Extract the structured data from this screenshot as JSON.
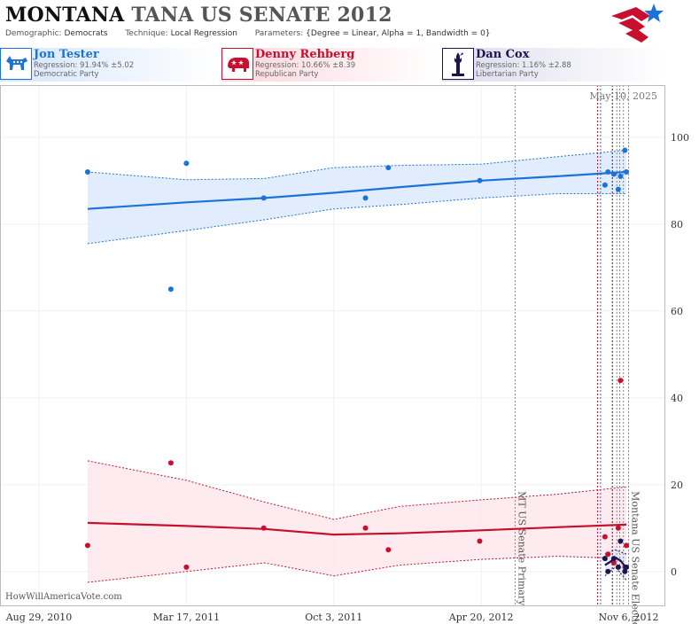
{
  "header": {
    "title_state": "MONTANA",
    "title_rest": "TANA US SENATE 2012",
    "demographic_key": "Demographic:",
    "demographic_val": "Democrats",
    "technique_key": "Technique:",
    "technique_val": "Local Regression",
    "parameters_key": "Parameters:",
    "parameters_val": "{Degree = Linear, Alpha = 1, Bandwidth = 0}"
  },
  "candidates": [
    {
      "name": "Jon Tester",
      "regression": "Regression: 91.94% ±5.02",
      "party": "Democratic Party",
      "color": "#1a73d9",
      "icon": "donkey-icon"
    },
    {
      "name": "Denny Rehberg",
      "regression": "Regression: 10.66% ±8.39",
      "party": "Republican Party",
      "color": "#c8102e",
      "icon": "elephant-icon"
    },
    {
      "name": "Dan Cox",
      "regression": "Regression: 1.16% ±2.88",
      "party": "Libertarian Party",
      "color": "#1c1650",
      "icon": "liberty-icon"
    }
  ],
  "watermark": "HowWillAmericaVote.com",
  "chart_data": {
    "type": "scatter",
    "date_label": "May 10, 2025",
    "x_range": [
      "2010-08-29",
      "2012-11-15"
    ],
    "x_ticks": [
      {
        "date": "2010-08-29",
        "label": "Aug 29, 2010"
      },
      {
        "date": "2011-03-17",
        "label": "Mar 17, 2011"
      },
      {
        "date": "2011-10-03",
        "label": "Oct 3, 2011"
      },
      {
        "date": "2012-04-20",
        "label": "Apr 20, 2012"
      },
      {
        "date": "2012-11-06",
        "label": "Nov 6, 2012"
      }
    ],
    "y_range": [
      -8,
      112
    ],
    "y_ticks": [
      0,
      20,
      40,
      60,
      80,
      100
    ],
    "vlines": [
      {
        "date": "2012-06-05",
        "label": "MT US Senate Primary",
        "color": "#888888"
      },
      {
        "date": "2012-11-06",
        "label": "Montana US Senate Election",
        "color": "#888888"
      },
      {
        "date": "2012-09-25",
        "label": "",
        "color": "#c8102e"
      },
      {
        "date": "2012-09-29",
        "label": "",
        "color": "#1a73d9"
      },
      {
        "date": "2012-10-15",
        "label": "",
        "color": "#1c1650"
      },
      {
        "date": "2012-10-21",
        "label": "",
        "color": "#888888"
      },
      {
        "date": "2012-10-25",
        "label": "",
        "color": "#888888"
      },
      {
        "date": "2012-10-30",
        "label": "",
        "color": "#888888"
      }
    ],
    "series": [
      {
        "name": "Jon Tester",
        "color": "#1a73d9",
        "band_color": "#dceafb",
        "points": [
          {
            "x": "2010-11-03",
            "y": 92
          },
          {
            "x": "2011-02-24",
            "y": 65
          },
          {
            "x": "2011-03-17",
            "y": 94
          },
          {
            "x": "2011-06-30",
            "y": 86
          },
          {
            "x": "2011-11-15",
            "y": 86
          },
          {
            "x": "2011-12-16",
            "y": 93
          },
          {
            "x": "2012-04-18",
            "y": 90
          },
          {
            "x": "2012-10-05",
            "y": 89
          },
          {
            "x": "2012-10-09",
            "y": 92
          },
          {
            "x": "2012-10-17",
            "y": 91.5
          },
          {
            "x": "2012-10-23",
            "y": 88
          },
          {
            "x": "2012-10-26",
            "y": 91
          },
          {
            "x": "2012-11-01",
            "y": 97
          },
          {
            "x": "2012-11-03",
            "y": 92
          }
        ],
        "fit": [
          {
            "x": "2010-11-03",
            "y": 83.5
          },
          {
            "x": "2011-03-17",
            "y": 85
          },
          {
            "x": "2011-07-01",
            "y": 86
          },
          {
            "x": "2011-10-03",
            "y": 87.2
          },
          {
            "x": "2012-01-01",
            "y": 88.5
          },
          {
            "x": "2012-04-20",
            "y": 90
          },
          {
            "x": "2012-08-01",
            "y": 91
          },
          {
            "x": "2012-11-03",
            "y": 92
          }
        ],
        "upper": [
          {
            "x": "2010-11-03",
            "y": 92
          },
          {
            "x": "2011-03-17",
            "y": 90.2
          },
          {
            "x": "2011-07-01",
            "y": 90.5
          },
          {
            "x": "2011-10-03",
            "y": 93
          },
          {
            "x": "2012-01-01",
            "y": 93.5
          },
          {
            "x": "2012-04-20",
            "y": 93.8
          },
          {
            "x": "2012-08-01",
            "y": 95.5
          },
          {
            "x": "2012-11-03",
            "y": 97
          }
        ],
        "lower": [
          {
            "x": "2010-11-03",
            "y": 75.5
          },
          {
            "x": "2011-03-17",
            "y": 78.5
          },
          {
            "x": "2011-07-01",
            "y": 81
          },
          {
            "x": "2011-10-03",
            "y": 83.5
          },
          {
            "x": "2012-01-01",
            "y": 84.5
          },
          {
            "x": "2012-04-20",
            "y": 86
          },
          {
            "x": "2012-08-01",
            "y": 87
          },
          {
            "x": "2012-11-03",
            "y": 87
          }
        ]
      },
      {
        "name": "Denny Rehberg",
        "color": "#c8102e",
        "band_color": "#fde8ec",
        "points": [
          {
            "x": "2010-11-03",
            "y": 6
          },
          {
            "x": "2011-02-24",
            "y": 25
          },
          {
            "x": "2011-03-17",
            "y": 1
          },
          {
            "x": "2011-06-30",
            "y": 10
          },
          {
            "x": "2011-11-15",
            "y": 10
          },
          {
            "x": "2011-12-16",
            "y": 5
          },
          {
            "x": "2012-04-18",
            "y": 7
          },
          {
            "x": "2012-10-05",
            "y": 8
          },
          {
            "x": "2012-10-09",
            "y": 4
          },
          {
            "x": "2012-10-17",
            "y": 2
          },
          {
            "x": "2012-10-23",
            "y": 10
          },
          {
            "x": "2012-10-26",
            "y": 44
          },
          {
            "x": "2012-11-01",
            "y": 1
          },
          {
            "x": "2012-11-03",
            "y": 6
          }
        ],
        "fit": [
          {
            "x": "2010-11-03",
            "y": 11.2
          },
          {
            "x": "2011-03-17",
            "y": 10.5
          },
          {
            "x": "2011-07-01",
            "y": 9.8
          },
          {
            "x": "2011-10-03",
            "y": 8.5
          },
          {
            "x": "2012-01-01",
            "y": 8.8
          },
          {
            "x": "2012-04-20",
            "y": 9.5
          },
          {
            "x": "2012-08-01",
            "y": 10.2
          },
          {
            "x": "2012-11-03",
            "y": 10.8
          }
        ],
        "upper": [
          {
            "x": "2010-11-03",
            "y": 25.5
          },
          {
            "x": "2011-03-17",
            "y": 21
          },
          {
            "x": "2011-07-01",
            "y": 16
          },
          {
            "x": "2011-10-03",
            "y": 12
          },
          {
            "x": "2012-01-01",
            "y": 15
          },
          {
            "x": "2012-04-20",
            "y": 16.5
          },
          {
            "x": "2012-08-01",
            "y": 17.8
          },
          {
            "x": "2012-11-03",
            "y": 19.5
          }
        ],
        "lower": [
          {
            "x": "2010-11-03",
            "y": -2.5
          },
          {
            "x": "2011-03-17",
            "y": 0
          },
          {
            "x": "2011-07-01",
            "y": 2
          },
          {
            "x": "2011-10-03",
            "y": -1
          },
          {
            "x": "2012-01-01",
            "y": 1.5
          },
          {
            "x": "2012-04-20",
            "y": 2.8
          },
          {
            "x": "2012-08-01",
            "y": 3.5
          },
          {
            "x": "2012-11-03",
            "y": 3
          }
        ]
      },
      {
        "name": "Dan Cox",
        "color": "#1c1650",
        "band_color": "#e6e6f2",
        "points": [
          {
            "x": "2012-10-05",
            "y": 3
          },
          {
            "x": "2012-10-09",
            "y": 0
          },
          {
            "x": "2012-10-17",
            "y": 3
          },
          {
            "x": "2012-10-23",
            "y": 1
          },
          {
            "x": "2012-10-26",
            "y": 7
          },
          {
            "x": "2012-11-01",
            "y": 0
          },
          {
            "x": "2012-11-03",
            "y": 1
          }
        ],
        "fit": [
          {
            "x": "2012-10-05",
            "y": 1.5
          },
          {
            "x": "2012-10-12",
            "y": 2.2
          },
          {
            "x": "2012-10-19",
            "y": 3.2
          },
          {
            "x": "2012-10-26",
            "y": 2.5
          },
          {
            "x": "2012-11-03",
            "y": 0.8
          }
        ],
        "upper": [
          {
            "x": "2012-10-05",
            "y": 4
          },
          {
            "x": "2012-10-19",
            "y": 5
          },
          {
            "x": "2012-11-03",
            "y": 4
          }
        ],
        "lower": [
          {
            "x": "2012-10-05",
            "y": -1
          },
          {
            "x": "2012-10-19",
            "y": 1
          },
          {
            "x": "2012-11-03",
            "y": -2
          }
        ]
      }
    ]
  }
}
